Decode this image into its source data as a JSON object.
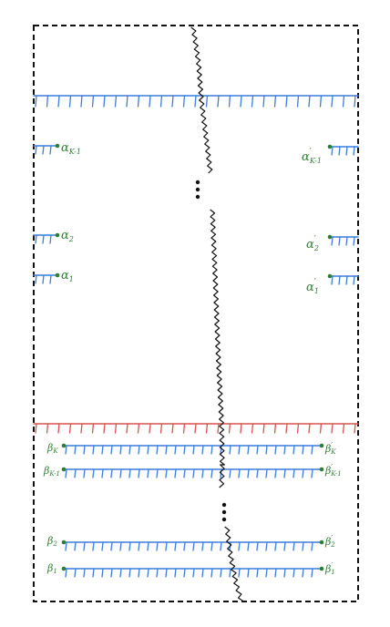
{
  "colors": {
    "frame": "#111111",
    "blue_line": "#3b7dd8",
    "red_line": "#d9534f",
    "label": "#2e7d32",
    "zigzag": "#111111"
  },
  "icons": [
    "vertical-ellipsis-icon",
    "vertical-ellipsis-icon"
  ],
  "labels": {
    "alpha_k_minus_1": "α",
    "alpha_k_minus_1_sub": "K-1",
    "alpha_2": "α",
    "alpha_2_sub": "2",
    "alpha_1": "α",
    "alpha_1_sub": "1",
    "alpha_k_minus_1_prime": "α",
    "alpha_k_minus_1_prime_sub": "K-1",
    "alpha_2_prime": "α",
    "alpha_2_prime_sub": "2",
    "alpha_1_prime": "α",
    "alpha_1_prime_sub": "1",
    "beta_k": "β",
    "beta_k_sub": "K",
    "beta_k_minus_1": "β",
    "beta_k_minus_1_sub": "K-1",
    "beta_2": "β",
    "beta_2_sub": "2",
    "beta_1": "β",
    "beta_1_sub": "1",
    "beta_k_prime": "β",
    "beta_k_prime_sub": "K",
    "beta_k_minus_1_prime": "β",
    "beta_k_minus_1_prime_sub": "K-1",
    "beta_2_prime": "β",
    "beta_2_prime_sub": "2",
    "beta_1_prime": "β",
    "beta_1_prime_sub": "1",
    "prime": "′"
  }
}
